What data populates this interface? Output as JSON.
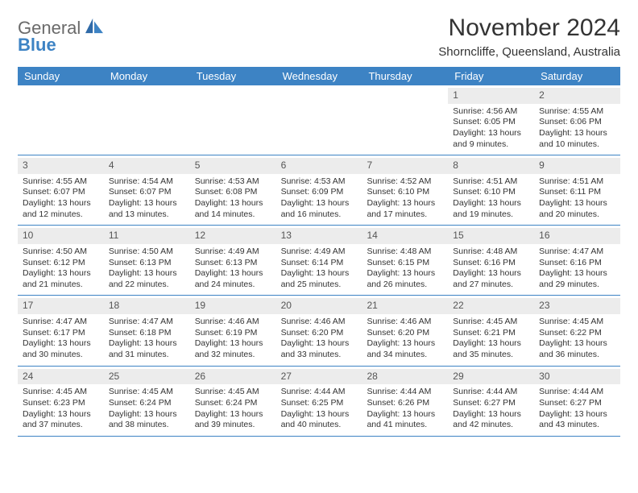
{
  "logo": {
    "word1": "General",
    "word2": "Blue"
  },
  "title": "November 2024",
  "location": "Shorncliffe, Queensland, Australia",
  "colors": {
    "accent": "#3d83c4",
    "daynum_bg": "#ececec",
    "text": "#333333",
    "logo_gray": "#6a6a6a"
  },
  "day_headers": [
    "Sunday",
    "Monday",
    "Tuesday",
    "Wednesday",
    "Thursday",
    "Friday",
    "Saturday"
  ],
  "weeks": [
    [
      null,
      null,
      null,
      null,
      null,
      {
        "n": "1",
        "sunrise": "Sunrise: 4:56 AM",
        "sunset": "Sunset: 6:05 PM",
        "d1": "Daylight: 13 hours",
        "d2": "and 9 minutes."
      },
      {
        "n": "2",
        "sunrise": "Sunrise: 4:55 AM",
        "sunset": "Sunset: 6:06 PM",
        "d1": "Daylight: 13 hours",
        "d2": "and 10 minutes."
      }
    ],
    [
      {
        "n": "3",
        "sunrise": "Sunrise: 4:55 AM",
        "sunset": "Sunset: 6:07 PM",
        "d1": "Daylight: 13 hours",
        "d2": "and 12 minutes."
      },
      {
        "n": "4",
        "sunrise": "Sunrise: 4:54 AM",
        "sunset": "Sunset: 6:07 PM",
        "d1": "Daylight: 13 hours",
        "d2": "and 13 minutes."
      },
      {
        "n": "5",
        "sunrise": "Sunrise: 4:53 AM",
        "sunset": "Sunset: 6:08 PM",
        "d1": "Daylight: 13 hours",
        "d2": "and 14 minutes."
      },
      {
        "n": "6",
        "sunrise": "Sunrise: 4:53 AM",
        "sunset": "Sunset: 6:09 PM",
        "d1": "Daylight: 13 hours",
        "d2": "and 16 minutes."
      },
      {
        "n": "7",
        "sunrise": "Sunrise: 4:52 AM",
        "sunset": "Sunset: 6:10 PM",
        "d1": "Daylight: 13 hours",
        "d2": "and 17 minutes."
      },
      {
        "n": "8",
        "sunrise": "Sunrise: 4:51 AM",
        "sunset": "Sunset: 6:10 PM",
        "d1": "Daylight: 13 hours",
        "d2": "and 19 minutes."
      },
      {
        "n": "9",
        "sunrise": "Sunrise: 4:51 AM",
        "sunset": "Sunset: 6:11 PM",
        "d1": "Daylight: 13 hours",
        "d2": "and 20 minutes."
      }
    ],
    [
      {
        "n": "10",
        "sunrise": "Sunrise: 4:50 AM",
        "sunset": "Sunset: 6:12 PM",
        "d1": "Daylight: 13 hours",
        "d2": "and 21 minutes."
      },
      {
        "n": "11",
        "sunrise": "Sunrise: 4:50 AM",
        "sunset": "Sunset: 6:13 PM",
        "d1": "Daylight: 13 hours",
        "d2": "and 22 minutes."
      },
      {
        "n": "12",
        "sunrise": "Sunrise: 4:49 AM",
        "sunset": "Sunset: 6:13 PM",
        "d1": "Daylight: 13 hours",
        "d2": "and 24 minutes."
      },
      {
        "n": "13",
        "sunrise": "Sunrise: 4:49 AM",
        "sunset": "Sunset: 6:14 PM",
        "d1": "Daylight: 13 hours",
        "d2": "and 25 minutes."
      },
      {
        "n": "14",
        "sunrise": "Sunrise: 4:48 AM",
        "sunset": "Sunset: 6:15 PM",
        "d1": "Daylight: 13 hours",
        "d2": "and 26 minutes."
      },
      {
        "n": "15",
        "sunrise": "Sunrise: 4:48 AM",
        "sunset": "Sunset: 6:16 PM",
        "d1": "Daylight: 13 hours",
        "d2": "and 27 minutes."
      },
      {
        "n": "16",
        "sunrise": "Sunrise: 4:47 AM",
        "sunset": "Sunset: 6:16 PM",
        "d1": "Daylight: 13 hours",
        "d2": "and 29 minutes."
      }
    ],
    [
      {
        "n": "17",
        "sunrise": "Sunrise: 4:47 AM",
        "sunset": "Sunset: 6:17 PM",
        "d1": "Daylight: 13 hours",
        "d2": "and 30 minutes."
      },
      {
        "n": "18",
        "sunrise": "Sunrise: 4:47 AM",
        "sunset": "Sunset: 6:18 PM",
        "d1": "Daylight: 13 hours",
        "d2": "and 31 minutes."
      },
      {
        "n": "19",
        "sunrise": "Sunrise: 4:46 AM",
        "sunset": "Sunset: 6:19 PM",
        "d1": "Daylight: 13 hours",
        "d2": "and 32 minutes."
      },
      {
        "n": "20",
        "sunrise": "Sunrise: 4:46 AM",
        "sunset": "Sunset: 6:20 PM",
        "d1": "Daylight: 13 hours",
        "d2": "and 33 minutes."
      },
      {
        "n": "21",
        "sunrise": "Sunrise: 4:46 AM",
        "sunset": "Sunset: 6:20 PM",
        "d1": "Daylight: 13 hours",
        "d2": "and 34 minutes."
      },
      {
        "n": "22",
        "sunrise": "Sunrise: 4:45 AM",
        "sunset": "Sunset: 6:21 PM",
        "d1": "Daylight: 13 hours",
        "d2": "and 35 minutes."
      },
      {
        "n": "23",
        "sunrise": "Sunrise: 4:45 AM",
        "sunset": "Sunset: 6:22 PM",
        "d1": "Daylight: 13 hours",
        "d2": "and 36 minutes."
      }
    ],
    [
      {
        "n": "24",
        "sunrise": "Sunrise: 4:45 AM",
        "sunset": "Sunset: 6:23 PM",
        "d1": "Daylight: 13 hours",
        "d2": "and 37 minutes."
      },
      {
        "n": "25",
        "sunrise": "Sunrise: 4:45 AM",
        "sunset": "Sunset: 6:24 PM",
        "d1": "Daylight: 13 hours",
        "d2": "and 38 minutes."
      },
      {
        "n": "26",
        "sunrise": "Sunrise: 4:45 AM",
        "sunset": "Sunset: 6:24 PM",
        "d1": "Daylight: 13 hours",
        "d2": "and 39 minutes."
      },
      {
        "n": "27",
        "sunrise": "Sunrise: 4:44 AM",
        "sunset": "Sunset: 6:25 PM",
        "d1": "Daylight: 13 hours",
        "d2": "and 40 minutes."
      },
      {
        "n": "28",
        "sunrise": "Sunrise: 4:44 AM",
        "sunset": "Sunset: 6:26 PM",
        "d1": "Daylight: 13 hours",
        "d2": "and 41 minutes."
      },
      {
        "n": "29",
        "sunrise": "Sunrise: 4:44 AM",
        "sunset": "Sunset: 6:27 PM",
        "d1": "Daylight: 13 hours",
        "d2": "and 42 minutes."
      },
      {
        "n": "30",
        "sunrise": "Sunrise: 4:44 AM",
        "sunset": "Sunset: 6:27 PM",
        "d1": "Daylight: 13 hours",
        "d2": "and 43 minutes."
      }
    ]
  ]
}
